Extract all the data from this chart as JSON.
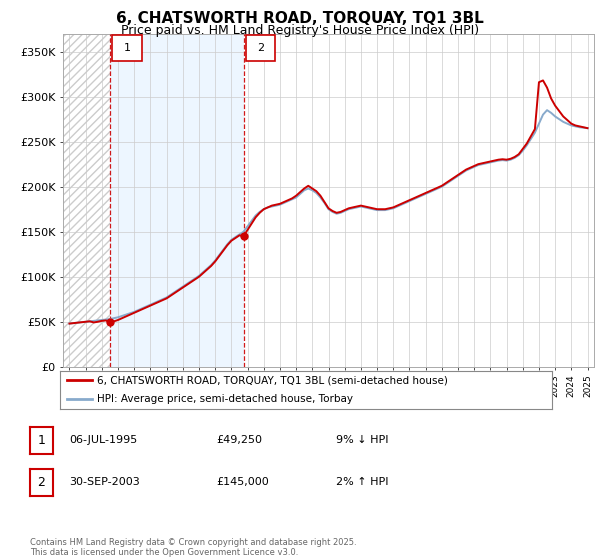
{
  "title": "6, CHATSWORTH ROAD, TORQUAY, TQ1 3BL",
  "subtitle": "Price paid vs. HM Land Registry's House Price Index (HPI)",
  "legend_line1": "6, CHATSWORTH ROAD, TORQUAY, TQ1 3BL (semi-detached house)",
  "legend_line2": "HPI: Average price, semi-detached house, Torbay",
  "footer": "Contains HM Land Registry data © Crown copyright and database right 2025.\nThis data is licensed under the Open Government Licence v3.0.",
  "ann1_date": "06-JUL-1995",
  "ann1_price": "£49,250",
  "ann1_hpi": "9% ↓ HPI",
  "ann2_date": "30-SEP-2003",
  "ann2_price": "£145,000",
  "ann2_hpi": "2% ↑ HPI",
  "color_property": "#cc0000",
  "color_hpi": "#88aacc",
  "ytick_labels": [
    "£0",
    "£50K",
    "£100K",
    "£150K",
    "£200K",
    "£250K",
    "£300K",
    "£350K"
  ],
  "yticks": [
    0,
    50000,
    100000,
    150000,
    200000,
    250000,
    300000,
    350000
  ],
  "sale1_year": 1995.5,
  "sale1_price": 49250,
  "sale2_year": 2003.75,
  "sale2_price": 145000,
  "xlim_min": 1992.6,
  "xlim_max": 2025.4,
  "ylim_max": 370000,
  "years": [
    1993.0,
    1993.25,
    1993.5,
    1993.75,
    1994.0,
    1994.25,
    1994.5,
    1994.75,
    1995.0,
    1995.25,
    1995.5,
    1995.75,
    1996.0,
    1996.25,
    1996.5,
    1996.75,
    1997.0,
    1997.25,
    1997.5,
    1997.75,
    1998.0,
    1998.25,
    1998.5,
    1998.75,
    1999.0,
    1999.25,
    1999.5,
    1999.75,
    2000.0,
    2000.25,
    2000.5,
    2000.75,
    2001.0,
    2001.25,
    2001.5,
    2001.75,
    2002.0,
    2002.25,
    2002.5,
    2002.75,
    2003.0,
    2003.25,
    2003.5,
    2003.75,
    2004.0,
    2004.25,
    2004.5,
    2004.75,
    2005.0,
    2005.25,
    2005.5,
    2005.75,
    2006.0,
    2006.25,
    2006.5,
    2006.75,
    2007.0,
    2007.25,
    2007.5,
    2007.75,
    2008.0,
    2008.25,
    2008.5,
    2008.75,
    2009.0,
    2009.25,
    2009.5,
    2009.75,
    2010.0,
    2010.25,
    2010.5,
    2010.75,
    2011.0,
    2011.25,
    2011.5,
    2011.75,
    2012.0,
    2012.25,
    2012.5,
    2012.75,
    2013.0,
    2013.25,
    2013.5,
    2013.75,
    2014.0,
    2014.25,
    2014.5,
    2014.75,
    2015.0,
    2015.25,
    2015.5,
    2015.75,
    2016.0,
    2016.25,
    2016.5,
    2016.75,
    2017.0,
    2017.25,
    2017.5,
    2017.75,
    2018.0,
    2018.25,
    2018.5,
    2018.75,
    2019.0,
    2019.25,
    2019.5,
    2019.75,
    2020.0,
    2020.25,
    2020.5,
    2020.75,
    2021.0,
    2021.25,
    2021.5,
    2021.75,
    2022.0,
    2022.25,
    2022.5,
    2022.75,
    2023.0,
    2023.25,
    2023.5,
    2023.75,
    2024.0,
    2024.25,
    2024.5,
    2024.75,
    2025.0
  ],
  "hpi": [
    48000,
    48500,
    49000,
    49500,
    50000,
    50500,
    51000,
    51500,
    52000,
    52500,
    53000,
    54000,
    55000,
    56500,
    58000,
    59500,
    61000,
    63000,
    65000,
    67000,
    69000,
    71000,
    73000,
    75000,
    77000,
    80000,
    83000,
    86000,
    89000,
    92000,
    95000,
    98000,
    101000,
    105000,
    109000,
    113000,
    118000,
    124000,
    130000,
    136000,
    141000,
    144000,
    147000,
    150000,
    156000,
    162000,
    168000,
    172000,
    175000,
    177000,
    178000,
    179000,
    180000,
    182000,
    184000,
    186000,
    188000,
    192000,
    196000,
    198000,
    196000,
    193000,
    188000,
    182000,
    175000,
    172000,
    170000,
    171000,
    173000,
    175000,
    176000,
    177000,
    178000,
    177000,
    176000,
    175000,
    174000,
    174000,
    174000,
    175000,
    176000,
    178000,
    180000,
    182000,
    184000,
    186000,
    188000,
    190000,
    192000,
    194000,
    196000,
    198000,
    200000,
    203000,
    206000,
    209000,
    212000,
    215000,
    218000,
    220000,
    222000,
    224000,
    225000,
    226000,
    227000,
    228000,
    229000,
    229500,
    229000,
    230000,
    232000,
    235000,
    240000,
    246000,
    253000,
    260000,
    270000,
    280000,
    285000,
    282000,
    278000,
    275000,
    272000,
    270000,
    268000,
    267000,
    266000,
    265500,
    265000
  ],
  "prop": [
    48000,
    48500,
    49000,
    49500,
    50000,
    50500,
    49250,
    50000,
    51000,
    51500,
    49250,
    50500,
    52000,
    54000,
    56000,
    58000,
    60000,
    62000,
    64000,
    66000,
    68000,
    70000,
    72000,
    74000,
    76000,
    79000,
    82000,
    85000,
    88000,
    91000,
    94000,
    97000,
    100000,
    104000,
    108000,
    112000,
    117000,
    123000,
    129000,
    135000,
    140000,
    143000,
    146000,
    145000,
    152000,
    159000,
    166000,
    171000,
    175000,
    177000,
    179000,
    180000,
    181000,
    183000,
    185000,
    187000,
    190000,
    194000,
    198000,
    201000,
    198000,
    195000,
    190000,
    183000,
    176000,
    173000,
    171000,
    172000,
    174000,
    176000,
    177000,
    178000,
    179000,
    178000,
    177000,
    176000,
    175000,
    175000,
    175000,
    176000,
    177000,
    179000,
    181000,
    183000,
    185000,
    187000,
    189000,
    191000,
    193000,
    195000,
    197000,
    199000,
    201000,
    204000,
    207000,
    210000,
    213000,
    216000,
    219000,
    221000,
    223000,
    225000,
    226000,
    227000,
    228000,
    229000,
    230000,
    230500,
    230000,
    231000,
    233000,
    236000,
    242000,
    248000,
    256000,
    264000,
    316000,
    318000,
    310000,
    298000,
    290000,
    284000,
    278000,
    274000,
    270000,
    268000,
    267000,
    266000,
    265000
  ]
}
